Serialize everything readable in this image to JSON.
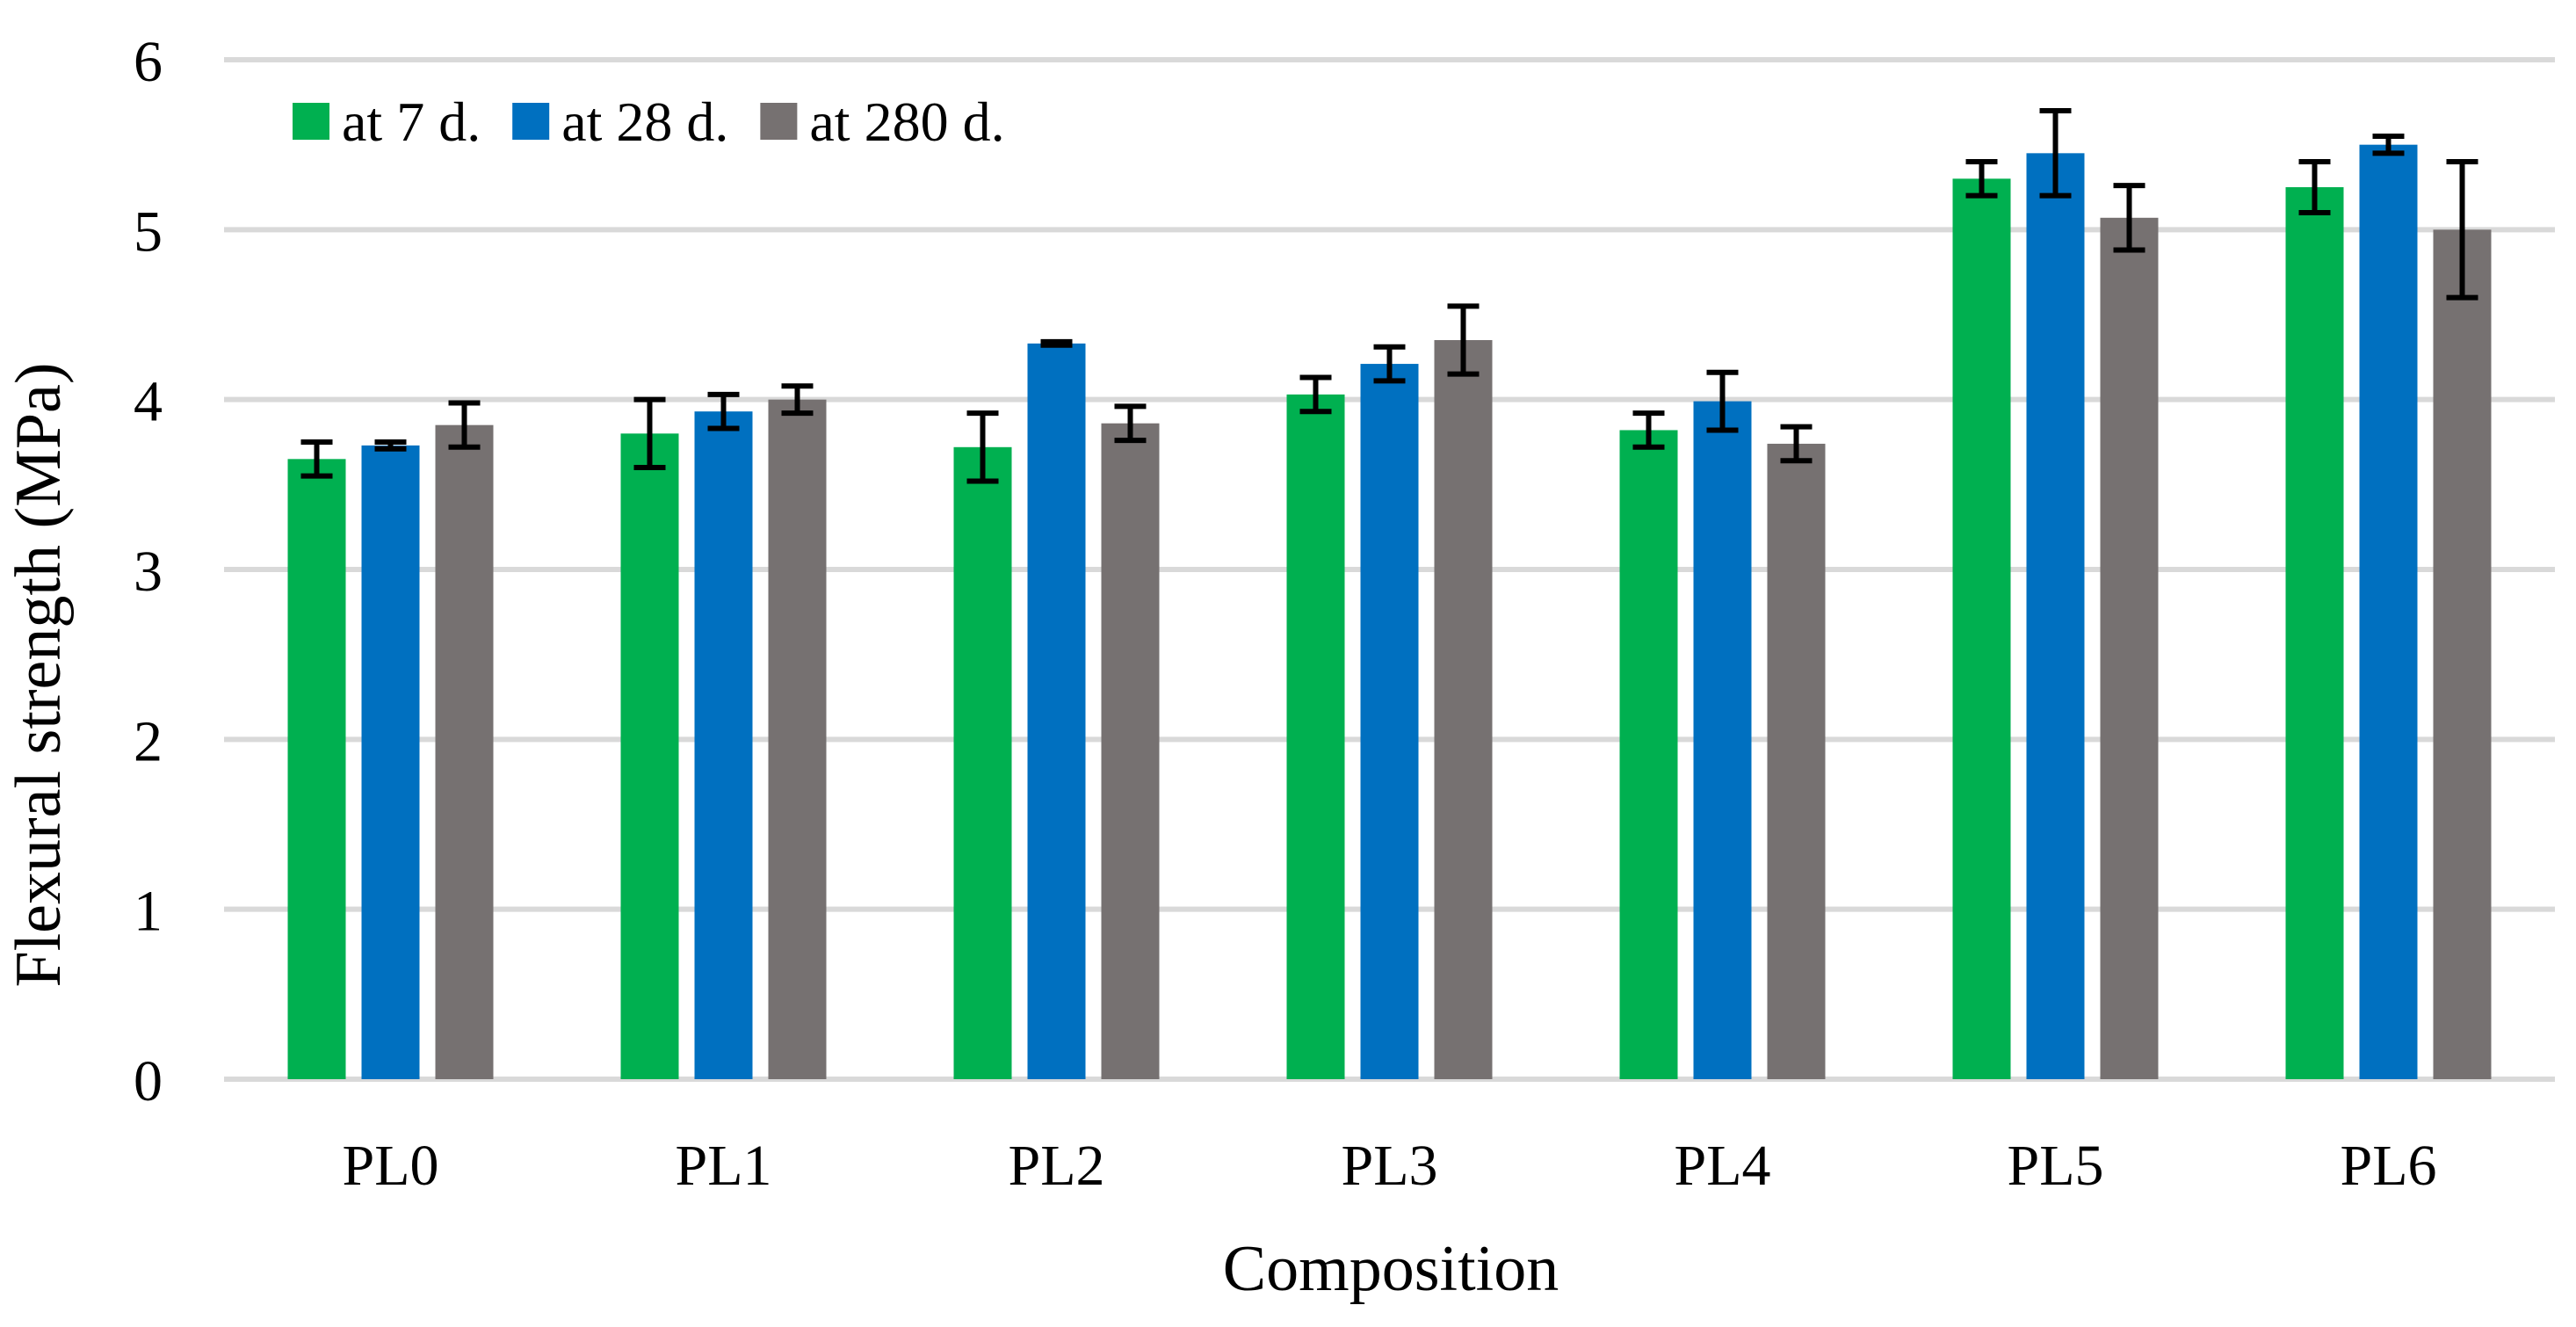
{
  "chart_data": {
    "type": "bar",
    "title": "",
    "xlabel": "Composition",
    "ylabel": "Flexural strength (MPa)",
    "ylim": [
      0,
      6
    ],
    "yticks": [
      0,
      1,
      2,
      3,
      4,
      5,
      6
    ],
    "grid": true,
    "legend_position": "top-left",
    "categories": [
      "PL0",
      "PL1",
      "PL2",
      "PL3",
      "PL4",
      "PL5",
      "PL6"
    ],
    "series": [
      {
        "name": "at 7 d.",
        "color": "#00b050",
        "values": [
          3.65,
          3.8,
          3.72,
          4.03,
          3.82,
          5.3,
          5.25
        ],
        "errors": [
          0.1,
          0.2,
          0.2,
          0.1,
          0.1,
          0.1,
          0.15
        ]
      },
      {
        "name": "at 28 d.",
        "color": "#0070c0",
        "values": [
          3.73,
          3.93,
          4.33,
          4.21,
          3.99,
          5.45,
          5.5
        ],
        "errors": [
          0.02,
          0.1,
          0.01,
          0.1,
          0.17,
          0.25,
          0.05
        ]
      },
      {
        "name": "at 280 d.",
        "color": "#767171",
        "values": [
          3.85,
          4.0,
          3.86,
          4.35,
          3.74,
          5.07,
          5.0
        ],
        "errors": [
          0.13,
          0.08,
          0.1,
          0.2,
          0.1,
          0.19,
          0.4
        ]
      }
    ]
  }
}
